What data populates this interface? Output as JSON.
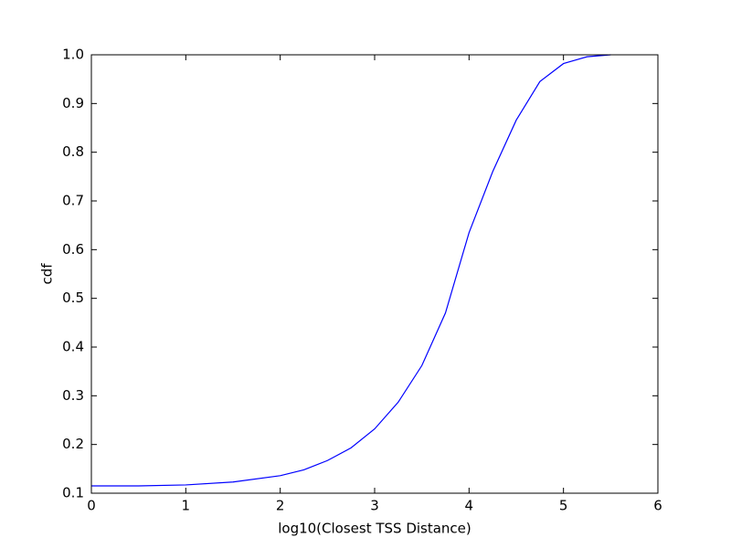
{
  "chart_data": {
    "type": "line",
    "xlabel": "log10(Closest TSS Distance)",
    "ylabel": "cdf",
    "x": [
      0,
      0.5,
      1,
      1.5,
      2,
      2.25,
      2.5,
      2.75,
      3,
      3.25,
      3.5,
      3.75,
      4,
      4.25,
      4.5,
      4.75,
      5,
      5.25,
      5.5
    ],
    "series": [
      {
        "color": "#0000ff",
        "values": [
          0.115,
          0.115,
          0.117,
          0.123,
          0.136,
          0.148,
          0.167,
          0.193,
          0.232,
          0.287,
          0.362,
          0.47,
          0.635,
          0.76,
          0.866,
          0.945,
          0.982,
          0.996,
          1.0
        ]
      }
    ],
    "xlim": [
      0,
      6
    ],
    "ylim": [
      0.1,
      1.0
    ],
    "xticks": [
      0,
      1,
      2,
      3,
      4,
      5,
      6
    ],
    "yticks": [
      0.1,
      0.2,
      0.3,
      0.4,
      0.5,
      0.6,
      0.7,
      0.8,
      0.9,
      {
        "value": 1,
        "label": "1.0"
      }
    ]
  }
}
